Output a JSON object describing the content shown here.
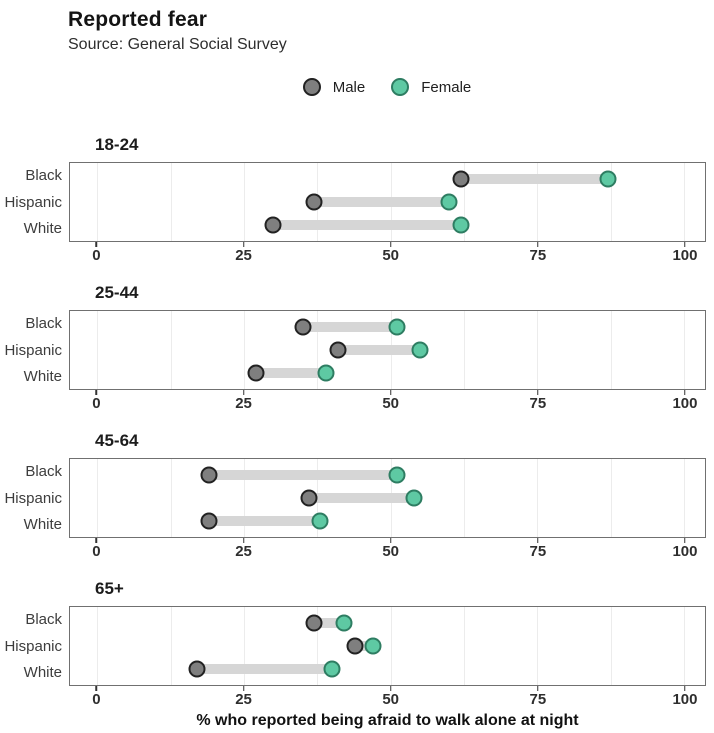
{
  "colors": {
    "male_fill": "#7f7f7f",
    "male_stroke": "#222222",
    "female_fill": "#5ec9a3",
    "female_stroke": "#2e7d62",
    "bar": "#d6d6d6",
    "grid": "#ececec",
    "panel_border": "#707070"
  },
  "chart_data": {
    "type": "dumbbell",
    "title": "Reported fear",
    "subtitle": "Source: General Social Survey",
    "xlabel": "% who reported being afraid to walk alone at night",
    "xlim": [
      0,
      100
    ],
    "x_ticks": [
      0,
      25,
      50,
      75,
      100
    ],
    "grid_minor_step": 12.5,
    "grid": "vertical only",
    "legend_position": "top-center",
    "series": [
      {
        "name": "Male",
        "color": "#7f7f7f"
      },
      {
        "name": "Female",
        "color": "#5ec9a3"
      }
    ],
    "categories": [
      "Black",
      "Hispanic",
      "White"
    ],
    "facets": [
      {
        "label": "18-24",
        "male": [
          62,
          37,
          30
        ],
        "female": [
          87,
          60,
          62
        ]
      },
      {
        "label": "25-44",
        "male": [
          35,
          41,
          27
        ],
        "female": [
          51,
          55,
          39
        ]
      },
      {
        "label": "45-64",
        "male": [
          19,
          36,
          19
        ],
        "female": [
          51,
          54,
          38
        ]
      },
      {
        "label": "65+",
        "male": [
          37,
          44,
          17
        ],
        "female": [
          42,
          47,
          40
        ]
      }
    ]
  }
}
